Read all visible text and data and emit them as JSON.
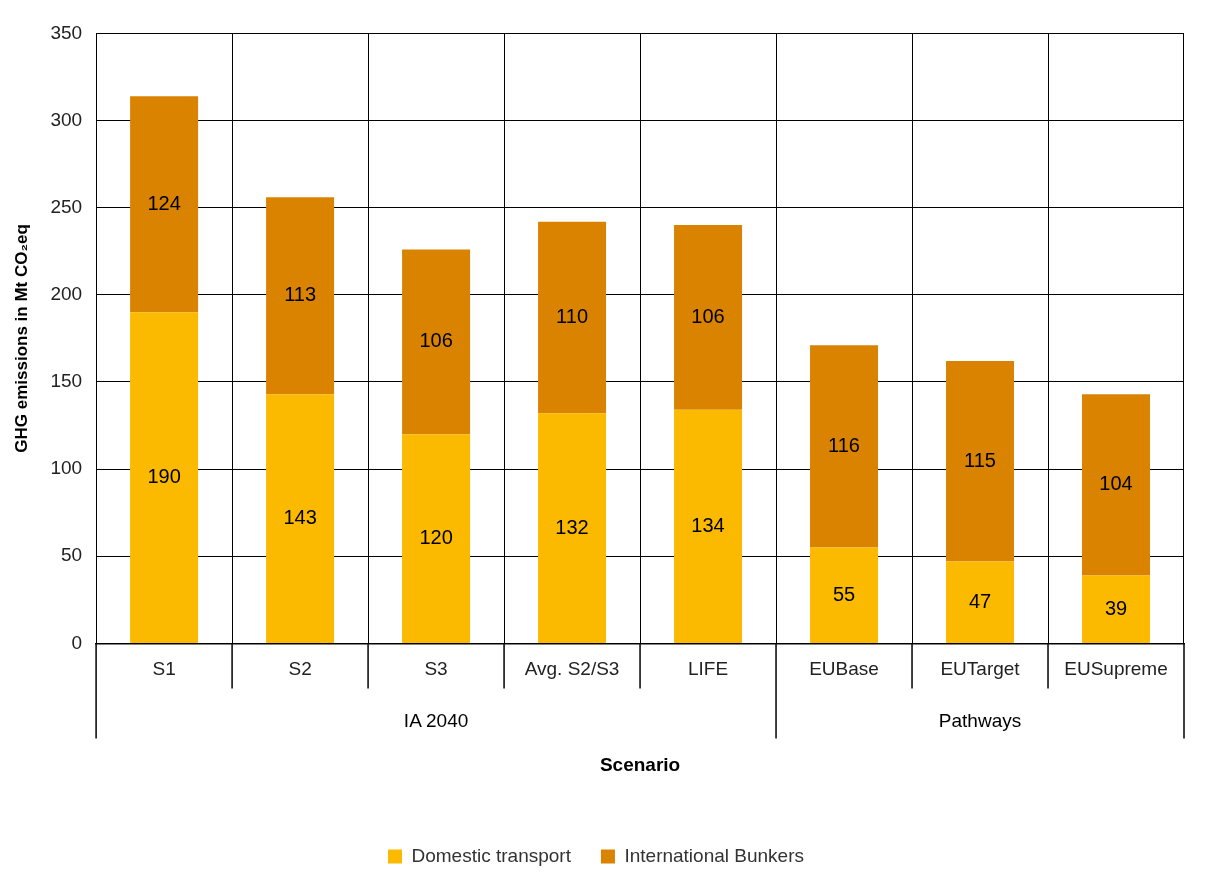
{
  "chart_data": {
    "type": "bar",
    "stacked": true,
    "xlabel": "Scenario",
    "ylabel": "GHG emissions in Mt CO₂eq",
    "categories": [
      "S1",
      "S2",
      "S3",
      "Avg. S2/S3",
      "LIFE",
      "EUBase",
      "EUTarget",
      "EUSupreme"
    ],
    "series": [
      {
        "name": "Domestic transport",
        "color": "#fbb900",
        "values": [
          190,
          143,
          120,
          132,
          134,
          55,
          47,
          39
        ]
      },
      {
        "name": "International Bunkers",
        "color": "#d98300",
        "values": [
          124,
          113,
          106,
          110,
          106,
          116,
          115,
          104
        ]
      }
    ],
    "ylim": [
      0,
      350
    ],
    "yticks": [
      0,
      50,
      100,
      150,
      200,
      250,
      300,
      350
    ],
    "grid": true,
    "legend": "bottom",
    "data_labels": true,
    "annotations": [
      "IA 2040",
      "Pathways"
    ]
  }
}
